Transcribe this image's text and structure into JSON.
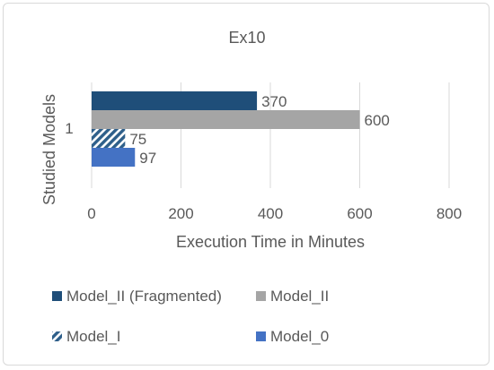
{
  "chart_data": {
    "type": "bar",
    "orientation": "horizontal",
    "title": "Ex10",
    "xlabel": "Execution Time in Minutes",
    "ylabel": "Studied Models",
    "categories": [
      "1"
    ],
    "xlim": [
      0,
      800
    ],
    "xticks": [
      "0",
      "200",
      "400",
      "600",
      "800"
    ],
    "grid": true,
    "legend_position": "bottom",
    "series": [
      {
        "name": "Model_II (Fragmented)",
        "values": [
          370
        ],
        "color": "#1f4e79",
        "pattern": "solid"
      },
      {
        "name": "Model_II",
        "values": [
          600
        ],
        "color": "#a5a5a5",
        "pattern": "solid"
      },
      {
        "name": "Model_I",
        "values": [
          75
        ],
        "color": "#2e5f8a",
        "pattern": "diagonal-hatch"
      },
      {
        "name": "Model_0",
        "values": [
          97
        ],
        "color": "#4472c4",
        "pattern": "solid"
      }
    ],
    "data_labels": [
      "370",
      "600",
      "75",
      "97"
    ]
  }
}
